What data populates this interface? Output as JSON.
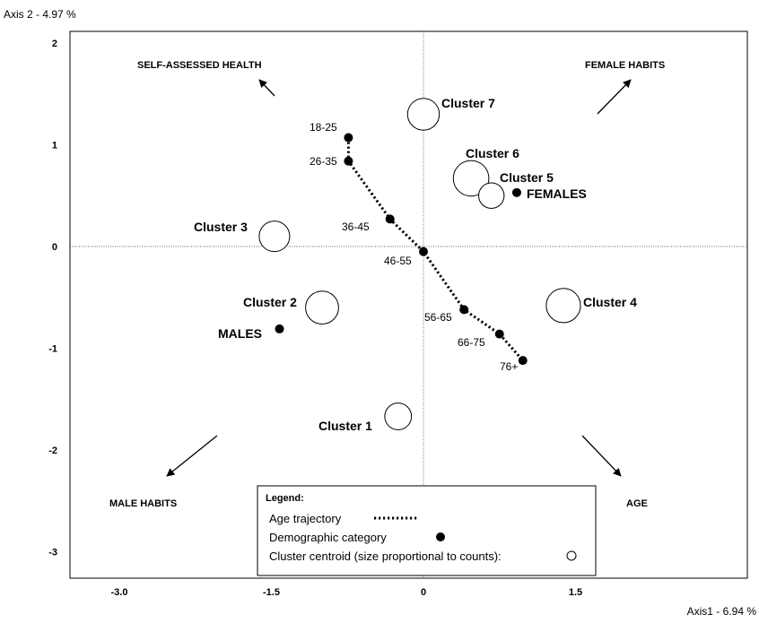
{
  "chart_data": {
    "type": "scatter",
    "axis_x_title": "Axis1  -  6.94 %",
    "axis_y_title": "Axis 2  -  4.97 %",
    "xlim": [
      -3.6,
      2.4
    ],
    "ylim": [
      -3.3,
      2.1
    ],
    "x_ticks": [
      {
        "value": -3.0,
        "label": "-3.0"
      },
      {
        "value": -1.5,
        "label": "-1.5"
      },
      {
        "value": 0,
        "label": "0"
      },
      {
        "value": 1.5,
        "label": "1.5"
      }
    ],
    "y_ticks": [
      {
        "value": 2,
        "label": "2"
      },
      {
        "value": 1,
        "label": "1"
      },
      {
        "value": 0,
        "label": "0"
      },
      {
        "value": -1,
        "label": "-1"
      },
      {
        "value": -2,
        "label": "-2"
      },
      {
        "value": -3,
        "label": "-3"
      }
    ],
    "directions": [
      {
        "label": "SELF-ASSESSED HEALTH",
        "direction": "top-left"
      },
      {
        "label": "FEMALE HABITS",
        "direction": "top-right"
      },
      {
        "label": "MALE HABITS",
        "direction": "bottom-left"
      },
      {
        "label": "AGE",
        "direction": "bottom-right"
      }
    ],
    "clusters": [
      {
        "label": "Cluster 7",
        "x": 0.0,
        "y": 1.3,
        "size": 0.55
      },
      {
        "label": "Cluster 6",
        "x": 0.47,
        "y": 0.67,
        "size": 0.7
      },
      {
        "label": "Cluster 5",
        "x": 0.67,
        "y": 0.5,
        "size": 0.3
      },
      {
        "label": "Cluster 3",
        "x": -1.47,
        "y": 0.1,
        "size": 0.5
      },
      {
        "label": "Cluster 2",
        "x": -1.0,
        "y": -0.6,
        "size": 0.6
      },
      {
        "label": "Cluster 4",
        "x": 1.38,
        "y": -0.58,
        "size": 0.65
      },
      {
        "label": "Cluster 1",
        "x": -0.25,
        "y": -1.67,
        "size": 0.35
      }
    ],
    "age_trajectory": [
      {
        "label": "18-25",
        "x": -0.74,
        "y": 1.07
      },
      {
        "label": "26-35",
        "x": -0.74,
        "y": 0.84
      },
      {
        "label": "36-45",
        "x": -0.33,
        "y": 0.27
      },
      {
        "label": "46-55",
        "x": 0.0,
        "y": -0.05
      },
      {
        "label": "56-65",
        "x": 0.4,
        "y": -0.62
      },
      {
        "label": "66-75",
        "x": 0.75,
        "y": -0.86
      },
      {
        "label": "76+",
        "x": 0.98,
        "y": -1.12
      }
    ],
    "demographic_points": [
      {
        "label": "FEMALES",
        "x": 0.92,
        "y": 0.53
      },
      {
        "label": "MALES",
        "x": -1.42,
        "y": -0.81
      }
    ],
    "legend": {
      "title": "Legend:",
      "items": [
        {
          "label": "Age trajectory",
          "marker": "dotted-line"
        },
        {
          "label": "Demographic category",
          "marker": "filled-dot"
        },
        {
          "label": "Cluster centroid (size proportional to counts):",
          "marker": "open-circle"
        }
      ]
    }
  }
}
